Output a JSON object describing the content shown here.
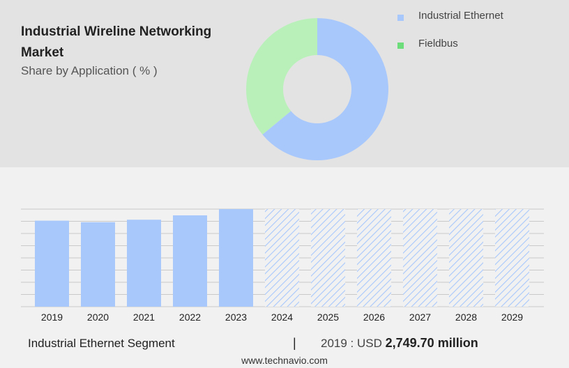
{
  "header": {
    "title": "Industrial Wireline Networking Market",
    "subtitle": "Share by Application ( % )"
  },
  "colors": {
    "industrial_ethernet": "#a8c8fb",
    "fieldbus": "#b9f0ba",
    "fieldbus_legend": "#6ddc7a",
    "forecast_hatch": "#a8c8fb",
    "grid": "#c9c9c9"
  },
  "chart_data": [
    {
      "type": "pie",
      "variant": "donut",
      "title": "Share by Application ( % )",
      "labels": [
        "Industrial Ethernet",
        "Fieldbus"
      ],
      "values": [
        64,
        36
      ],
      "legend": "top-right"
    },
    {
      "type": "bar",
      "categories": [
        "2019",
        "2020",
        "2021",
        "2022",
        "2023",
        "2024",
        "2025",
        "2026",
        "2027",
        "2028",
        "2029"
      ],
      "values": [
        2749.7,
        2700,
        2780,
        2920,
        3120,
        3120,
        3120,
        3120,
        3120,
        3120,
        3120
      ],
      "forecast_from": "2024",
      "ylim": [
        0,
        3120
      ],
      "grid": true,
      "xlabel": "",
      "ylabel": ""
    }
  ],
  "footer": {
    "segment": "Industrial Ethernet Segment",
    "divider": "|",
    "year_label": "2019 : USD",
    "value": "2,749.70 million",
    "source": "www.technavio.com"
  }
}
